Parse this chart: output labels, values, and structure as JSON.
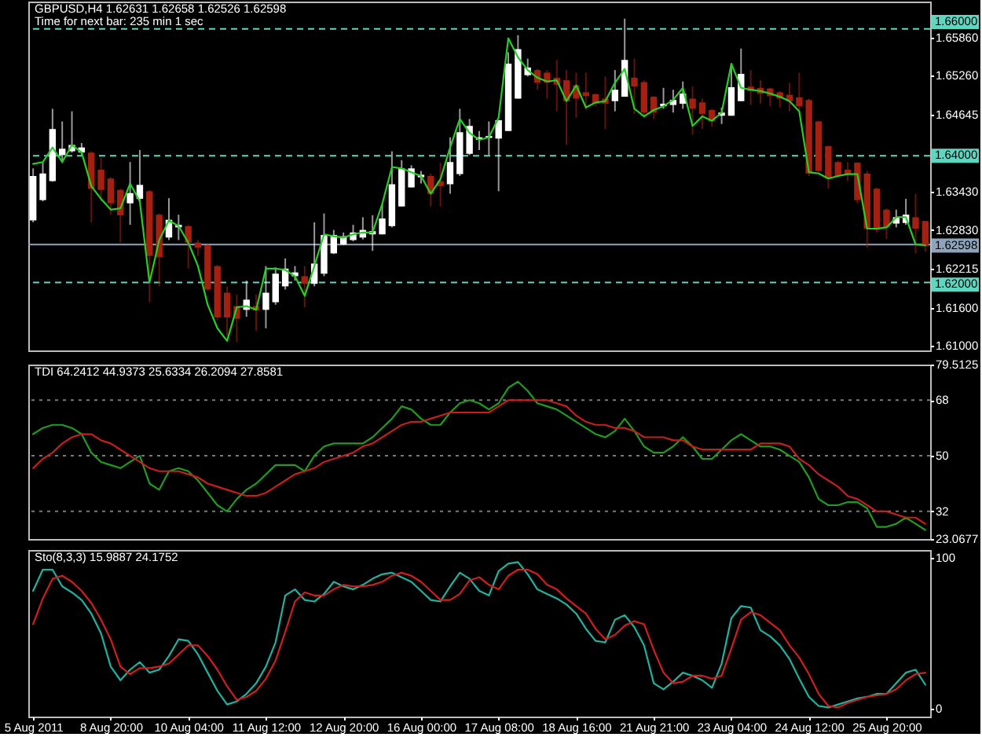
{
  "chart_data": [
    {
      "type": "candlestick",
      "title": "GBPUSD,H4 1.62631 1.62658 1.62526 1.62598",
      "subtitle": "Time for next bar: 235 min 1 sec",
      "categories": [
        null,
        null,
        null,
        null,
        null,
        null,
        null,
        null,
        null,
        null,
        null,
        null,
        null,
        null,
        null,
        null,
        null,
        null,
        null,
        null,
        null,
        null,
        null,
        null,
        null,
        null,
        null,
        null,
        null,
        null,
        null,
        null,
        null,
        null,
        null,
        null,
        null,
        null,
        null,
        null,
        null,
        null,
        null,
        null,
        null,
        null,
        null,
        null,
        null,
        null,
        null,
        null,
        null,
        null,
        null,
        null,
        null,
        null,
        null,
        null,
        null,
        null,
        null,
        null,
        null,
        null,
        null,
        null,
        null,
        null,
        null,
        null,
        null,
        null,
        null,
        null,
        null,
        null,
        null,
        null,
        null,
        null,
        null,
        null,
        null,
        null,
        null,
        null,
        null,
        null,
        null,
        null,
        null
      ],
      "ohlc": [
        [
          1.6298,
          1.638,
          1.6295,
          1.6368
        ],
        [
          1.633,
          1.6389,
          1.6328,
          1.6372
        ],
        [
          1.636,
          1.6474,
          1.6359,
          1.6442
        ],
        [
          1.6401,
          1.6454,
          1.6389,
          1.6411
        ],
        [
          1.6407,
          1.647,
          1.6405,
          1.6417
        ],
        [
          1.6405,
          1.642,
          1.6401,
          1.6413
        ],
        [
          1.6405,
          1.6407,
          1.6295,
          1.6348
        ],
        [
          1.6378,
          1.6397,
          1.6328,
          1.6346
        ],
        [
          1.6364,
          1.6366,
          1.6307,
          1.6325
        ],
        [
          1.6346,
          1.6348,
          1.6263,
          1.6306
        ],
        [
          1.6325,
          1.639,
          1.6291,
          1.6341
        ],
        [
          1.6332,
          1.6409,
          1.6328,
          1.6354
        ],
        [
          1.6344,
          1.6346,
          1.6169,
          1.6242
        ],
        [
          1.6307,
          1.6309,
          1.6194,
          1.624
        ],
        [
          1.6271,
          1.6333,
          1.6267,
          1.6299
        ],
        [
          1.6287,
          1.6307,
          1.6267,
          1.6291
        ],
        [
          1.6289,
          1.6291,
          1.6222,
          1.6263
        ],
        [
          1.6263,
          1.6267,
          1.6242,
          1.6255
        ],
        [
          1.6259,
          1.626,
          1.6187,
          1.6189
        ],
        [
          1.6226,
          1.6228,
          1.6141,
          1.6145
        ],
        [
          1.6184,
          1.6194,
          1.6116,
          1.6145
        ],
        [
          1.6163,
          1.6181,
          1.6106,
          1.6143
        ],
        [
          1.6157,
          1.6203,
          1.6146,
          1.6173
        ],
        [
          1.6163,
          1.6181,
          1.6124,
          1.6156
        ],
        [
          1.6157,
          1.6226,
          1.6128,
          1.6184
        ],
        [
          1.6169,
          1.6224,
          1.6165,
          1.6214
        ],
        [
          1.6194,
          1.6238,
          1.6189,
          1.6222
        ],
        [
          1.621,
          1.6226,
          1.6203,
          1.6216
        ],
        [
          1.621,
          1.6226,
          1.6161,
          1.6198
        ],
        [
          1.6198,
          1.6295,
          1.6194,
          1.623
        ],
        [
          1.6214,
          1.6309,
          1.621,
          1.6275
        ],
        [
          1.6246,
          1.6283,
          1.6245,
          1.6275
        ],
        [
          1.626,
          1.6279,
          1.6259,
          1.6273
        ],
        [
          1.6267,
          1.6291,
          1.6265,
          1.6279
        ],
        [
          1.6271,
          1.6303,
          1.6268,
          1.6283
        ],
        [
          1.6276,
          1.6306,
          1.625,
          1.6281
        ],
        [
          1.6276,
          1.6324,
          1.6276,
          1.6301
        ],
        [
          1.6289,
          1.6407,
          1.6287,
          1.6355
        ],
        [
          1.632,
          1.6393,
          1.632,
          1.638
        ],
        [
          1.635,
          1.6385,
          1.635,
          1.638
        ],
        [
          1.6366,
          1.6376,
          1.6356,
          1.637
        ],
        [
          1.6368,
          1.6372,
          1.632,
          1.634
        ],
        [
          1.636,
          1.6389,
          1.632,
          1.6352
        ],
        [
          1.6355,
          1.6429,
          1.634,
          1.639
        ],
        [
          1.6371,
          1.6474,
          1.6368,
          1.6437
        ],
        [
          1.6403,
          1.6458,
          1.6401,
          1.6447
        ],
        [
          1.6425,
          1.6439,
          1.6409,
          1.6429
        ],
        [
          1.6428,
          1.6454,
          1.6401,
          1.6431
        ],
        [
          1.6427,
          1.6456,
          1.6344,
          1.6456
        ],
        [
          1.6439,
          1.6563,
          1.6439,
          1.6545
        ],
        [
          1.649,
          1.659,
          1.649,
          1.6568
        ],
        [
          1.6527,
          1.6553,
          1.6525,
          1.6539
        ],
        [
          1.6535,
          1.6537,
          1.6504,
          1.6515
        ],
        [
          1.6531,
          1.6535,
          1.649,
          1.6515
        ],
        [
          1.6523,
          1.6551,
          1.647,
          1.6512
        ],
        [
          1.6519,
          1.6535,
          1.6417,
          1.6486
        ],
        [
          1.6511,
          1.6531,
          1.646,
          1.649
        ],
        [
          1.65,
          1.6531,
          1.6472,
          1.6494
        ],
        [
          1.6497,
          1.6498,
          1.6478,
          1.6482
        ],
        [
          1.649,
          1.6525,
          1.6442,
          1.6482
        ],
        [
          1.6486,
          1.6535,
          1.647,
          1.6504
        ],
        [
          1.6493,
          1.6616,
          1.6493,
          1.6551
        ],
        [
          1.6523,
          1.6553,
          1.6466,
          1.6509
        ],
        [
          1.6516,
          1.6519,
          1.646,
          1.6468
        ],
        [
          1.6493,
          1.6494,
          1.6458,
          1.6468
        ],
        [
          1.6478,
          1.6507,
          1.6474,
          1.6482
        ],
        [
          1.648,
          1.6504,
          1.6468,
          1.6488
        ],
        [
          1.6482,
          1.6517,
          1.6474,
          1.6498
        ],
        [
          1.649,
          1.6509,
          1.6433,
          1.6474
        ],
        [
          1.6484,
          1.649,
          1.6442,
          1.6466
        ],
        [
          1.6472,
          1.6474,
          1.6446,
          1.6454
        ],
        [
          1.6463,
          1.6476,
          1.645,
          1.6468
        ],
        [
          1.6463,
          1.6545,
          1.6463,
          1.6508
        ],
        [
          1.6486,
          1.6569,
          1.6486,
          1.6529
        ],
        [
          1.6509,
          1.6535,
          1.648,
          1.6502
        ],
        [
          1.6507,
          1.6519,
          1.6482,
          1.6498
        ],
        [
          1.6506,
          1.6507,
          1.6478,
          1.6494
        ],
        [
          1.65,
          1.6502,
          1.6476,
          1.649
        ],
        [
          1.6496,
          1.6515,
          1.647,
          1.6486
        ],
        [
          1.6492,
          1.6531,
          1.6468,
          1.6478
        ],
        [
          1.6488,
          1.649,
          1.6368,
          1.6372
        ],
        [
          1.6454,
          1.6455,
          1.6374,
          1.6376
        ],
        [
          1.6415,
          1.6416,
          1.6348,
          1.6364
        ],
        [
          1.639,
          1.6392,
          1.6366,
          1.6368
        ],
        [
          1.6378,
          1.639,
          1.636,
          1.6371
        ],
        [
          1.6389,
          1.639,
          1.6325,
          1.633
        ],
        [
          1.6372,
          1.6376,
          1.6255,
          1.6285
        ],
        [
          1.6348,
          1.635,
          1.6279,
          1.6283
        ],
        [
          1.6315,
          1.6317,
          1.6269,
          1.6287
        ],
        [
          1.6293,
          1.6315,
          1.6287,
          1.6303
        ],
        [
          1.6294,
          1.6332,
          1.6291,
          1.6307
        ],
        [
          1.6303,
          1.634,
          1.6246,
          1.6285
        ],
        [
          1.6297,
          1.6297,
          1.6249,
          1.6257
        ]
      ],
      "colors": [
        "#ffffff",
        "#ffffff",
        "#ffffff",
        "#ffffff",
        "#ffffff",
        "#ffffff",
        "#a52010",
        "#a52010",
        "#a52010",
        "#a52010",
        "#ffffff",
        "#ffffff",
        "#a52010",
        "#a52010",
        "#ffffff",
        "#ffffff",
        "#a52010",
        "#a52010",
        "#a52010",
        "#a52010",
        "#a52010",
        "#a52010",
        "#ffffff",
        "#a52010",
        "#ffffff",
        "#ffffff",
        "#ffffff",
        "#ffffff",
        "#a52010",
        "#ffffff",
        "#ffffff",
        "#ffffff",
        "#ffffff",
        "#ffffff",
        "#ffffff",
        "#ffffff",
        "#ffffff",
        "#ffffff",
        "#ffffff",
        "#ffffff",
        "#ffffff",
        "#a52010",
        "#a52010",
        "#ffffff",
        "#ffffff",
        "#ffffff",
        "#ffffff",
        "#ffffff",
        "#ffffff",
        "#ffffff",
        "#ffffff",
        "#ffffff",
        "#a52010",
        "#a52010",
        "#a52010",
        "#a52010",
        "#a52010",
        "#a52010",
        "#a52010",
        "#a52010",
        "#ffffff",
        "#ffffff",
        "#a52010",
        "#a52010",
        "#a52010",
        "#ffffff",
        "#ffffff",
        "#ffffff",
        "#a52010",
        "#a52010",
        "#a52010",
        "#ffffff",
        "#ffffff",
        "#ffffff",
        "#a52010",
        "#a52010",
        "#a52010",
        "#a52010",
        "#a52010",
        "#a52010",
        "#a52010",
        "#a52010",
        "#a52010",
        "#a52010",
        "#a52010",
        "#a52010",
        "#a52010",
        "#a52010",
        "#a52010",
        "#ffffff",
        "#ffffff",
        "#a52010",
        "#a52010"
      ],
      "series": [
        {
          "type": "line",
          "color": "#24d024",
          "values": [
            1.6387,
            1.639,
            1.6413,
            1.639,
            1.6417,
            1.6405,
            1.6352,
            1.6332,
            1.6315,
            1.6317,
            1.6356,
            1.6328,
            1.62,
            1.6267,
            1.6298,
            1.6289,
            1.6263,
            1.6226,
            1.6165,
            1.6128,
            1.6108,
            1.6161,
            1.6163,
            1.6157,
            1.6222,
            1.6222,
            1.622,
            1.621,
            1.6179,
            1.6226,
            1.6276,
            1.6273,
            1.6271,
            1.6276,
            1.6279,
            1.6279,
            1.6324,
            1.6382,
            1.638,
            1.6374,
            1.6368,
            1.634,
            1.6363,
            1.6413,
            1.6458,
            1.6436,
            1.6425,
            1.6429,
            1.646,
            1.6585,
            1.6555,
            1.6535,
            1.6523,
            1.6517,
            1.6519,
            1.6486,
            1.6511,
            1.6476,
            1.6484,
            1.6486,
            1.6515,
            1.6537,
            1.6474,
            1.6462,
            1.6472,
            1.6478,
            1.6488,
            1.6507,
            1.6447,
            1.6462,
            1.6455,
            1.6468,
            1.6545,
            1.6507,
            1.6504,
            1.6502,
            1.6498,
            1.6493,
            1.6486,
            1.647,
            1.6374,
            1.6372,
            1.6364,
            1.6368,
            1.6371,
            1.6371,
            1.6285,
            1.6285,
            1.6287,
            1.6303,
            1.6303,
            1.626,
            1.6259
          ]
        }
      ],
      "ylim": [
        1.6093,
        1.6643
      ],
      "yticks": [
        {
          "value": 1.6586,
          "label": "1.65860"
        },
        {
          "value": 1.6526,
          "label": "1.65260"
        },
        1.64645,
        {
          "value": 1.6343,
          "label": "1.63430"
        },
        {
          "value": 1.6283,
          "label": "1.62830"
        },
        1.62215,
        {
          "value": 1.616,
          "label": "1.61600"
        },
        {
          "value": 1.61,
          "label": "1.61000"
        }
      ],
      "ref_lines": [
        {
          "axis": "y",
          "value": 1.66,
          "label": "1.66000",
          "color": "#5ed6c0",
          "line_style": "dashed"
        },
        {
          "axis": "y",
          "value": 1.64,
          "label": "1.64000",
          "color": "#5ed6c0",
          "line_style": "dashed"
        },
        {
          "axis": "y",
          "value": 1.62,
          "label": "1.62000",
          "color": "#5ed6c0",
          "line_style": "dashed"
        },
        {
          "axis": "y",
          "value": 1.62598,
          "label": "1.62598",
          "color": "#8ea4bc",
          "line_style": "solid"
        }
      ],
      "tick_labels": "y"
    },
    {
      "type": "line",
      "title": "TDI 64.2412 44.9373 25.6334 26.2094 27.8581",
      "categories": [
        null,
        null,
        null,
        null,
        null,
        null,
        null,
        null,
        null,
        null,
        null,
        null,
        null,
        null,
        null,
        null,
        null,
        null,
        null,
        null,
        null,
        null,
        null,
        null,
        null,
        null,
        null,
        null,
        null,
        null,
        null,
        null,
        null,
        null,
        null,
        null,
        null,
        null,
        null,
        null,
        null,
        null,
        null,
        null,
        null,
        null,
        null,
        null,
        null,
        null,
        null,
        null,
        null,
        null,
        null,
        null,
        null,
        null,
        null,
        null,
        null,
        null,
        null,
        null,
        null,
        null,
        null,
        null,
        null,
        null,
        null,
        null,
        null,
        null,
        null,
        null,
        null,
        null,
        null,
        null,
        null,
        null,
        null,
        null,
        null,
        null,
        null,
        null,
        null,
        null,
        null,
        null,
        null
      ],
      "series": [
        {
          "color": "#1e9e1e",
          "values": [
            57,
            59,
            60,
            60,
            59,
            57,
            51,
            48,
            47,
            46,
            48,
            50,
            41,
            39,
            45,
            46,
            45,
            42,
            38,
            34,
            32,
            36,
            39,
            41,
            44,
            47,
            47,
            47,
            45,
            50,
            53,
            54,
            54,
            54,
            54,
            56,
            59,
            62,
            66,
            65,
            62,
            60,
            60,
            64,
            67,
            68,
            67,
            65,
            67,
            72,
            74,
            71,
            67,
            66,
            65,
            63,
            61,
            59,
            57,
            56,
            58,
            62,
            58,
            53,
            51,
            51,
            53,
            56,
            53,
            49,
            49,
            52,
            55,
            57,
            55,
            53,
            53,
            52,
            50,
            48,
            43,
            36,
            34,
            34,
            35,
            35,
            33,
            27,
            27,
            28,
            30,
            28,
            26
          ]
        },
        {
          "color": "#c81e1e",
          "values": [
            46,
            49,
            51,
            54,
            56,
            57,
            57,
            55,
            54,
            52,
            50,
            48,
            46,
            45,
            45,
            45,
            44,
            43,
            41,
            40,
            39,
            38,
            37,
            37,
            38,
            40,
            42,
            44,
            45,
            46,
            48,
            49,
            50,
            51,
            53,
            54,
            56,
            58,
            60,
            61,
            61,
            62,
            63,
            64,
            64,
            64,
            64,
            64,
            66,
            68,
            68,
            68,
            68,
            68,
            67,
            66,
            63,
            61,
            60,
            60,
            59,
            59,
            58,
            56,
            56,
            56,
            55,
            55,
            53,
            52,
            52,
            52,
            52,
            52,
            52,
            54,
            54,
            54,
            53,
            49,
            47,
            44,
            42,
            40,
            37,
            36,
            34,
            32,
            32,
            31,
            30,
            30,
            28
          ]
        }
      ],
      "ylim": [
        23.0677,
        79.5125
      ],
      "yticks": [
        79.5125,
        68,
        50,
        32,
        23.0677
      ],
      "ref_lines": [
        {
          "axis": "y",
          "value": 68,
          "color": "#7a7a7a",
          "line_style": "dotted"
        },
        {
          "axis": "y",
          "value": 50,
          "color": "#7a7a7a",
          "line_style": "dotted"
        },
        {
          "axis": "y",
          "value": 32,
          "color": "#7a7a7a",
          "line_style": "dotted"
        }
      ],
      "tick_labels": "y"
    },
    {
      "type": "line",
      "title": "Sto(8,3,3) 15.9887 24.1752",
      "categories": [
        "5 Aug 2011",
        null,
        null,
        null,
        null,
        null,
        null,
        null,
        "8 Aug 20:00",
        null,
        null,
        null,
        null,
        null,
        null,
        null,
        "10 Aug 04:00",
        null,
        null,
        null,
        null,
        null,
        null,
        null,
        "11 Aug 12:00",
        null,
        null,
        null,
        null,
        null,
        null,
        null,
        "12 Aug 20:00",
        null,
        null,
        null,
        null,
        null,
        null,
        null,
        "16 Aug 00:00",
        null,
        null,
        null,
        null,
        null,
        null,
        null,
        "17 Aug 08:00",
        null,
        null,
        null,
        null,
        null,
        null,
        null,
        "18 Aug 16:00",
        null,
        null,
        null,
        null,
        null,
        null,
        null,
        "21 Aug 21:00",
        null,
        null,
        null,
        null,
        null,
        null,
        null,
        "23 Aug 04:00",
        null,
        null,
        null,
        null,
        null,
        null,
        null,
        "24 Aug 12:00",
        null,
        null,
        null,
        null,
        null,
        null,
        null,
        "25 Aug 20:00",
        null,
        null,
        null,
        null
      ],
      "series": [
        {
          "color": "#1eb4a0",
          "values": [
            78,
            92,
            92,
            81,
            77,
            72,
            63,
            50,
            28,
            19,
            26,
            31,
            24,
            26,
            35,
            46,
            45,
            36,
            24,
            12,
            3,
            5,
            10,
            17,
            28,
            44,
            75,
            79,
            72,
            71,
            76,
            84,
            81,
            79,
            82,
            86,
            89,
            90,
            87,
            84,
            78,
            72,
            71,
            81,
            90,
            86,
            78,
            75,
            91,
            96,
            97,
            89,
            79,
            76,
            73,
            69,
            63,
            53,
            45,
            44,
            59,
            62,
            54,
            42,
            17,
            13,
            18,
            24,
            22,
            19,
            14,
            30,
            60,
            68,
            67,
            52,
            48,
            42,
            33,
            20,
            8,
            2,
            1,
            3,
            5,
            7,
            8,
            10,
            10,
            17,
            24,
            26,
            16
          ]
        },
        {
          "color": "#d21e1e",
          "values": [
            56,
            73,
            86,
            88,
            84,
            78,
            70,
            59,
            46,
            28,
            23,
            27,
            27,
            28,
            30,
            36,
            42,
            42,
            35,
            26,
            15,
            6,
            8,
            12,
            20,
            32,
            51,
            71,
            77,
            75,
            75,
            79,
            82,
            81,
            81,
            82,
            84,
            88,
            90,
            88,
            84,
            78,
            72,
            72,
            76,
            85,
            87,
            82,
            79,
            88,
            92,
            92,
            89,
            82,
            79,
            73,
            68,
            63,
            53,
            46,
            49,
            55,
            58,
            56,
            39,
            24,
            17,
            18,
            22,
            22,
            20,
            22,
            40,
            59,
            64,
            62,
            57,
            52,
            42,
            34,
            23,
            10,
            2,
            1,
            4,
            6,
            8,
            9,
            10,
            13,
            19,
            23,
            24
          ]
        }
      ],
      "ylim": [
        -5,
        105
      ],
      "yticks": [
        100,
        0
      ]
    }
  ]
}
